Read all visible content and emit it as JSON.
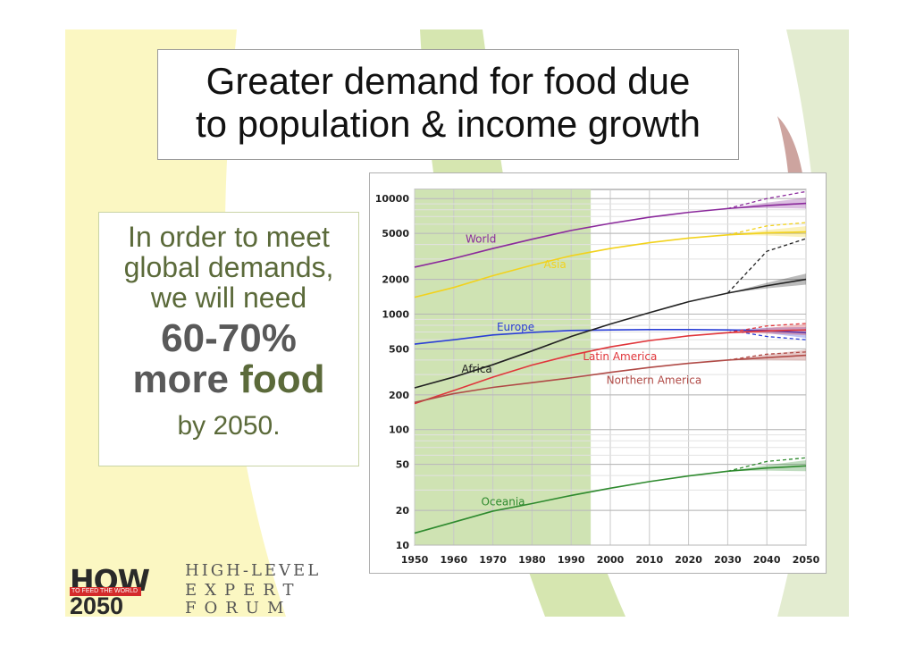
{
  "slide": {
    "title_line1": "Greater demand for food due",
    "title_line2": "to population & income growth",
    "side": {
      "line1": "In order to meet",
      "line2": "global demands,",
      "line3": "we will need",
      "big1": "60-70%",
      "big2_a": "more ",
      "big2_b": "food",
      "by": "by 2050."
    },
    "logo": {
      "how": "HOW",
      "sub": "TO FEED THE WORLD",
      "year": "2050",
      "hl1": "HIGH-LEVEL",
      "hl2": "EXPERT",
      "hl3": "FORUM"
    }
  },
  "chart_data": {
    "type": "line",
    "title": "",
    "xlabel": "",
    "ylabel": "",
    "scale": "log",
    "xlim": [
      1950,
      2050
    ],
    "ylim": [
      10,
      12000
    ],
    "x_ticks": [
      1950,
      1960,
      1970,
      1980,
      1990,
      2000,
      2010,
      2020,
      2030,
      2040,
      2050
    ],
    "y_ticks": [
      10,
      20,
      50,
      100,
      200,
      500,
      1000,
      2000,
      5000,
      10000
    ],
    "shaded_period": [
      1950,
      1995
    ],
    "grid": true,
    "series": [
      {
        "name": "World",
        "color": "#8b2a9c",
        "x": [
          1950,
          1960,
          1970,
          1980,
          1990,
          2000,
          2010,
          2020,
          2030,
          2040,
          2050
        ],
        "values": [
          2550,
          3030,
          3700,
          4450,
          5300,
          6100,
          6900,
          7600,
          8200,
          8700,
          9100
        ],
        "projection_high": [
          10000,
          11500
        ],
        "label_x": 1963,
        "label_y": 4150
      },
      {
        "name": "Asia",
        "color": "#f2d21c",
        "x": [
          1950,
          1960,
          1970,
          1980,
          1990,
          2000,
          2010,
          2020,
          2030,
          2040,
          2050
        ],
        "values": [
          1400,
          1700,
          2150,
          2650,
          3200,
          3700,
          4150,
          4550,
          4850,
          5050,
          5150
        ],
        "projection_high": [
          5800,
          6200
        ],
        "label_x": 1983,
        "label_y": 2500
      },
      {
        "name": "Europe",
        "color": "#2a3ed6",
        "x": [
          1950,
          1960,
          1970,
          1980,
          1990,
          2000,
          2010,
          2020,
          2030,
          2040,
          2050
        ],
        "values": [
          550,
          600,
          660,
          695,
          722,
          730,
          735,
          735,
          730,
          720,
          690
        ],
        "projection_high": [
          640,
          600
        ],
        "label_x": 1971,
        "label_y": 720
      },
      {
        "name": "Africa",
        "color": "#222222",
        "x": [
          1950,
          1960,
          1970,
          1980,
          1990,
          2000,
          2010,
          2020,
          2030,
          2040,
          2050
        ],
        "values": [
          230,
          285,
          365,
          480,
          640,
          820,
          1030,
          1280,
          1520,
          1760,
          2000
        ],
        "projection_high": [
          3500,
          4500
        ],
        "label_x": 1962,
        "label_y": 310
      },
      {
        "name": "Latin America",
        "color": "#e0353a",
        "x": [
          1950,
          1960,
          1970,
          1980,
          1990,
          2000,
          2010,
          2020,
          2030,
          2040,
          2050
        ],
        "values": [
          168,
          218,
          285,
          362,
          441,
          520,
          590,
          648,
          690,
          715,
          730
        ],
        "projection_high": [
          790,
          830
        ],
        "label_x": 1993,
        "label_y": 400
      },
      {
        "name": "Northern America",
        "color": "#b04a46",
        "x": [
          1950,
          1960,
          1970,
          1980,
          1990,
          2000,
          2010,
          2020,
          2030,
          2040,
          2050
        ],
        "values": [
          172,
          205,
          232,
          255,
          281,
          313,
          345,
          375,
          400,
          420,
          440
        ],
        "projection_high": [
          450,
          470
        ],
        "label_x": 1999,
        "label_y": 250
      },
      {
        "name": "Oceania",
        "color": "#2e8a2e",
        "x": [
          1950,
          1960,
          1970,
          1980,
          1990,
          2000,
          2010,
          2020,
          2030,
          2040,
          2050
        ],
        "values": [
          12.7,
          15.8,
          19.7,
          22.9,
          26.9,
          31.1,
          35.5,
          39.7,
          43.6,
          46.5,
          48.5
        ],
        "projection_high": [
          53,
          57
        ],
        "label_x": 1967,
        "label_y": 22
      }
    ]
  }
}
